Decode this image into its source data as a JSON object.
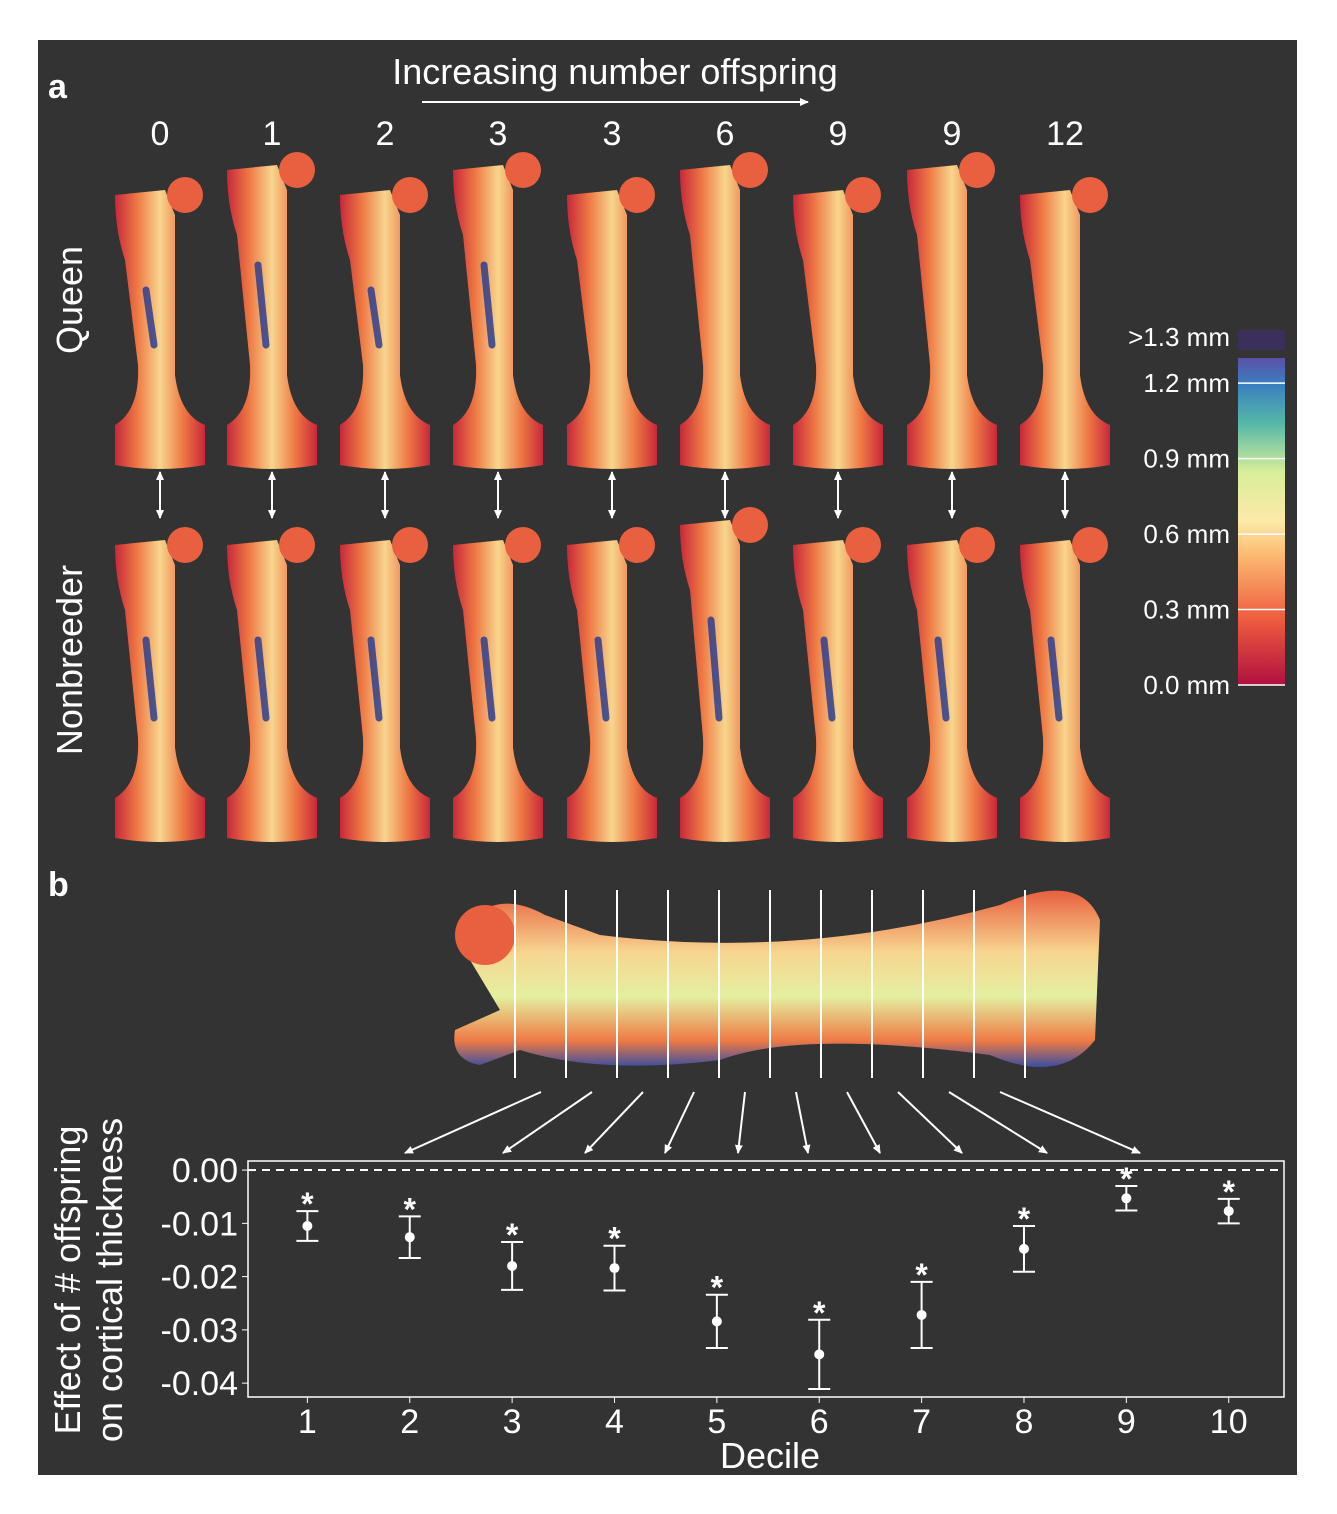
{
  "panel_labels": [
    "a",
    "b"
  ],
  "panel_a": {
    "title": "Increasing number offspring",
    "offspring": [
      0,
      1,
      2,
      3,
      3,
      6,
      9,
      9,
      12
    ],
    "rows": [
      "Queen",
      "Nonbreeder"
    ],
    "colorbar": {
      "range": [
        0,
        1.3
      ],
      "ticks": [
        {
          "value": 1.2,
          "label": "1.2 mm"
        },
        {
          "value": 0.9,
          "label": "0.9 mm"
        },
        {
          "value": 0.6,
          "label": "0.6 mm"
        },
        {
          "value": 0.3,
          "label": "0.3 mm"
        },
        {
          "value": 0,
          "label": "0.0 mm"
        }
      ],
      "over_label": ">1.3 mm",
      "over_color": "#3b2f5c"
    }
  },
  "chart_data": {
    "type": "errorbar",
    "xlabel": "Decile",
    "ylabel": [
      "Effect of # offspring",
      "on cortical thickness"
    ],
    "x": [
      1,
      2,
      3,
      4,
      5,
      6,
      7,
      8,
      9,
      10
    ],
    "values": [
      -0.0105,
      -0.0126,
      -0.018,
      -0.0184,
      -0.0284,
      -0.0346,
      -0.0272,
      -0.0148,
      -0.0053,
      -0.0077
    ],
    "errors": [
      0.0028,
      0.0039,
      0.0045,
      0.0042,
      0.005,
      0.0065,
      0.0062,
      0.0043,
      0.0023,
      0.0023
    ],
    "annotations": [
      "*",
      "*",
      "*",
      "*",
      "*",
      "*",
      "*",
      "*",
      "*",
      "*"
    ],
    "hline": 0,
    "color": "#ffffff",
    "xlim": [
      0.42,
      10.54
    ],
    "ylim": [
      -0.0426,
      0.0017
    ],
    "xticks": [
      1,
      2,
      3,
      4,
      5,
      6,
      7,
      8,
      9,
      10
    ],
    "yticks": [
      {
        "value": 0,
        "label": "0.00"
      },
      -0.01,
      -0.02,
      -0.03,
      -0.04
    ]
  }
}
